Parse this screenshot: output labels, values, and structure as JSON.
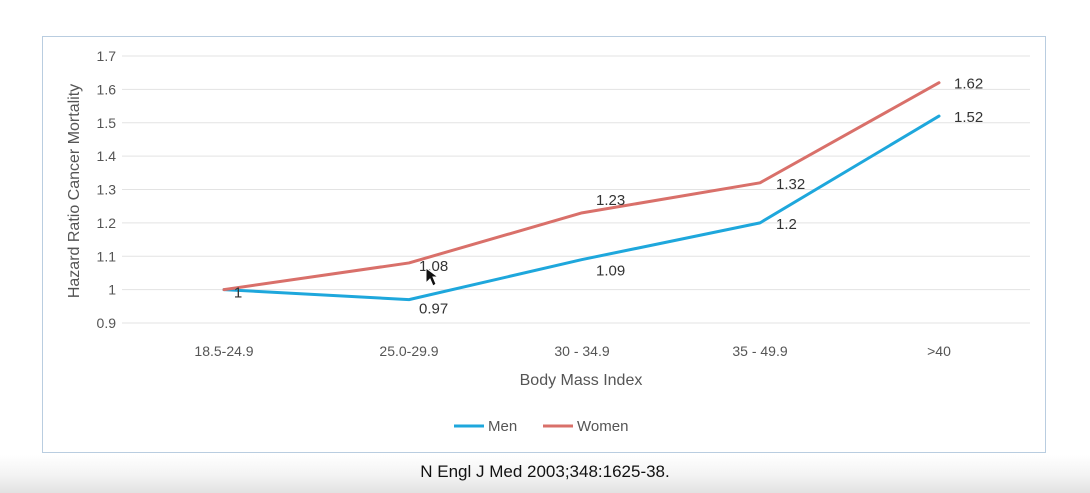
{
  "citation": "N Engl J Med 2003;348:1625-38.",
  "chart_data": {
    "type": "line",
    "categories": [
      "18.5-24.9",
      "25.0-29.9",
      "30 - 34.9",
      "35 - 49.9",
      ">40"
    ],
    "series": [
      {
        "name": "Men",
        "color": "#1ea7dc",
        "values": [
          1,
          0.97,
          1.09,
          1.2,
          1.52
        ],
        "labels": [
          "",
          "0.97",
          "1.09",
          "1.2",
          "1.52"
        ]
      },
      {
        "name": "Women",
        "color": "#d9706a",
        "values": [
          1,
          1.08,
          1.23,
          1.32,
          1.62
        ],
        "labels": [
          "1",
          "1.08",
          "1.23",
          "1.32",
          "1.62"
        ]
      }
    ],
    "yticks": [
      "0.9",
      "1",
      "1.1",
      "1.2",
      "1.3",
      "1.4",
      "1.5",
      "1.6",
      "1.7"
    ],
    "ylim": [
      0.9,
      1.7
    ],
    "xlabel": "Body Mass Index",
    "ylabel": "Hazard Ratio Cancer Mortality",
    "grid": true,
    "legend": "bottom-center"
  }
}
